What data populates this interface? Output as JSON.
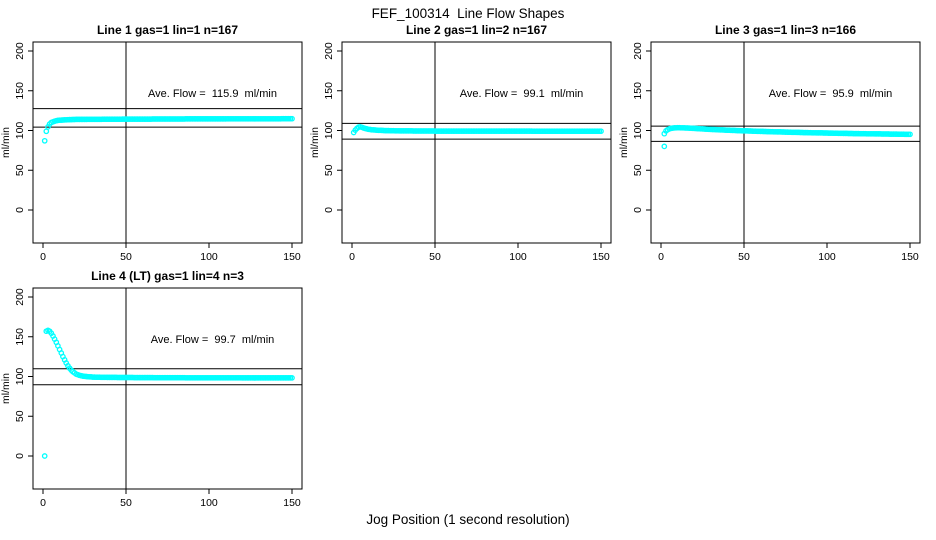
{
  "page_title": "FEF_100314  Line Flow Shapes",
  "x_axis_label": "Jog Position (1 second resolution)",
  "colors": {
    "points": "#00FFFF",
    "axis": "#000000",
    "background": "#FFFFFF"
  },
  "chart_data": [
    {
      "type": "scatter",
      "title": "Line 1 gas=1 lin=1 n=167",
      "annotation": "Ave. Flow =  115.9  ml/min",
      "ave_flow_ml_min": 115.9,
      "n": 167,
      "ylabel": "ml/min",
      "xlim": [
        0,
        150
      ],
      "ylim": [
        0,
        200
      ],
      "xticks": [
        0,
        50,
        100,
        150
      ],
      "yticks": [
        0,
        50,
        100,
        150,
        200
      ],
      "vline_x": 50,
      "hlines": [
        127.5,
        104.3
      ],
      "marker": "open-circle",
      "grid": false,
      "legend": "none",
      "series_keypoints": [
        [
          3,
          104.5
        ],
        [
          4,
          108
        ],
        [
          5,
          110
        ],
        [
          6,
          111
        ],
        [
          8,
          112.3
        ],
        [
          10,
          113
        ],
        [
          15,
          113.6
        ],
        [
          20,
          113.9
        ],
        [
          30,
          114.1
        ],
        [
          50,
          114.3
        ],
        [
          80,
          114.5
        ],
        [
          120,
          114.7
        ],
        [
          150,
          114.8
        ]
      ],
      "outliers": [
        [
          1,
          87
        ],
        [
          2,
          99
        ]
      ]
    },
    {
      "type": "scatter",
      "title": "Line 2 gas=1 lin=2 n=167",
      "annotation": "Ave. Flow =  99.1  ml/min",
      "ave_flow_ml_min": 99.1,
      "n": 167,
      "ylabel": "ml/min",
      "xlim": [
        0,
        150
      ],
      "ylim": [
        0,
        200
      ],
      "xticks": [
        0,
        50,
        100,
        150
      ],
      "yticks": [
        0,
        50,
        100,
        150,
        200
      ],
      "vline_x": 50,
      "hlines": [
        109.0,
        89.2
      ],
      "marker": "open-circle",
      "grid": false,
      "legend": "none",
      "series_keypoints": [
        [
          1,
          97.5
        ],
        [
          2,
          100.5
        ],
        [
          3,
          102.8
        ],
        [
          4,
          104.3
        ],
        [
          5,
          104.6
        ],
        [
          6,
          104
        ],
        [
          7,
          103.2
        ],
        [
          8,
          102.5
        ],
        [
          10,
          101.5
        ],
        [
          12,
          100.9
        ],
        [
          15,
          100.4
        ],
        [
          20,
          99.9
        ],
        [
          25,
          99.7
        ],
        [
          30,
          99.5
        ],
        [
          50,
          99.3
        ],
        [
          100,
          99.2
        ],
        [
          150,
          99.1
        ]
      ],
      "outliers": []
    },
    {
      "type": "scatter",
      "title": "Line 3 gas=1 lin=3 n=166",
      "annotation": "Ave. Flow =  95.9  ml/min",
      "ave_flow_ml_min": 95.9,
      "n": 166,
      "ylabel": "ml/min",
      "xlim": [
        0,
        150
      ],
      "ylim": [
        0,
        200
      ],
      "xticks": [
        0,
        50,
        100,
        150
      ],
      "yticks": [
        0,
        50,
        100,
        150,
        200
      ],
      "vline_x": 50,
      "hlines": [
        105.5,
        86.3
      ],
      "marker": "open-circle",
      "grid": false,
      "legend": "none",
      "series_keypoints": [
        [
          2,
          96
        ],
        [
          3,
          99.5
        ],
        [
          4,
          101
        ],
        [
          5,
          102
        ],
        [
          6,
          102.7
        ],
        [
          8,
          103.3
        ],
        [
          10,
          103.5
        ],
        [
          13,
          103.4
        ],
        [
          16,
          103.1
        ],
        [
          20,
          102.6
        ],
        [
          25,
          102
        ],
        [
          30,
          101.4
        ],
        [
          40,
          100.4
        ],
        [
          50,
          99.6
        ],
        [
          60,
          98.9
        ],
        [
          75,
          98
        ],
        [
          90,
          97.2
        ],
        [
          105,
          96.6
        ],
        [
          120,
          96
        ],
        [
          135,
          95.6
        ],
        [
          150,
          95.2
        ]
      ],
      "outliers": [
        [
          2,
          80
        ]
      ]
    },
    {
      "type": "scatter",
      "title": "Line 4 (LT) gas=1 lin=4 n=3",
      "annotation": "Ave. Flow =  99.7  ml/min",
      "ave_flow_ml_min": 99.7,
      "n": 3,
      "ylabel": "ml/min",
      "xlim": [
        0,
        150
      ],
      "ylim": [
        0,
        200
      ],
      "xticks": [
        0,
        50,
        100,
        150
      ],
      "yticks": [
        0,
        50,
        100,
        150,
        200
      ],
      "vline_x": 50,
      "hlines": [
        109.7,
        89.7
      ],
      "marker": "open-circle",
      "grid": false,
      "legend": "none",
      "series_keypoints": [
        [
          2,
          157
        ],
        [
          3,
          158
        ],
        [
          4,
          157
        ],
        [
          5,
          154.5
        ],
        [
          6,
          151
        ],
        [
          7,
          147
        ],
        [
          8,
          143
        ],
        [
          9,
          138.5
        ],
        [
          10,
          134
        ],
        [
          11,
          129.5
        ],
        [
          12,
          125
        ],
        [
          13,
          121
        ],
        [
          14,
          117
        ],
        [
          15,
          113.5
        ],
        [
          16,
          110.5
        ],
        [
          17,
          108
        ],
        [
          18,
          106
        ],
        [
          19,
          104.5
        ],
        [
          20,
          103
        ],
        [
          22,
          101.5
        ],
        [
          24,
          100.5
        ],
        [
          27,
          99.8
        ],
        [
          30,
          99.3
        ],
        [
          35,
          99
        ],
        [
          45,
          98.8
        ],
        [
          60,
          98.6
        ],
        [
          90,
          98.4
        ],
        [
          120,
          98.3
        ],
        [
          150,
          98.2
        ]
      ],
      "outliers": [
        [
          1,
          0
        ]
      ]
    }
  ]
}
